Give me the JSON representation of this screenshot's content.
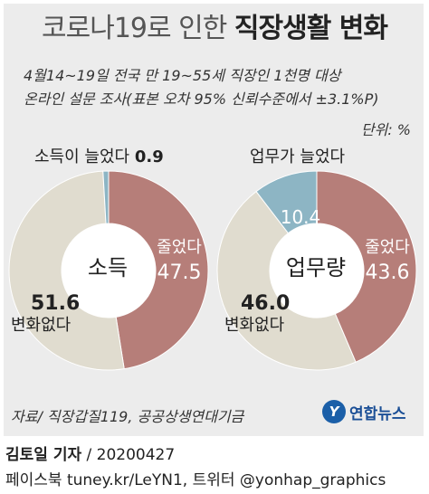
{
  "header": {
    "title_light": "코로나19로 인한",
    "title_bold": "직장생활 변화",
    "subtitle_line1": "4월14~19일 전국 만 19~55세 직장인 1천명 대상",
    "subtitle_line2": "온라인 설문 조사(표본 오차 95% 신뢰수준에서 ±3.1%P)",
    "unit": "단위: %"
  },
  "colors": {
    "decreased": "#b67e79",
    "no_change": "#e0dccf",
    "increased": "#8db5c4",
    "background": "#ececec",
    "logo": "#1b5fa8"
  },
  "chart_data": [
    {
      "type": "pie",
      "center_label": "소득",
      "slices": [
        {
          "label": "줄었다",
          "value": 47.5,
          "value_text": "47.5"
        },
        {
          "label": "변화없다",
          "value": 51.6,
          "value_text": "51.6"
        },
        {
          "label": "소득이 늘었다",
          "value": 0.9,
          "value_text": "0.9"
        }
      ]
    },
    {
      "type": "pie",
      "center_label": "업무량",
      "slices": [
        {
          "label": "줄었다",
          "value": 43.6,
          "value_text": "43.6"
        },
        {
          "label": "변화없다",
          "value": 46.0,
          "value_text": "46.0"
        },
        {
          "label": "업무가 늘었다",
          "value": 10.4,
          "value_text": "10.4"
        }
      ]
    }
  ],
  "footer": {
    "source": "자료/ 직장갑질119, 공공상생연대기금",
    "logo_mark": "Y",
    "logo_text": "연합뉴스",
    "author": "김토일 기자",
    "date": " / 20200427",
    "social": "페이스북 tuney.kr/LeYN1, 트위터 @yonhap_graphics"
  }
}
